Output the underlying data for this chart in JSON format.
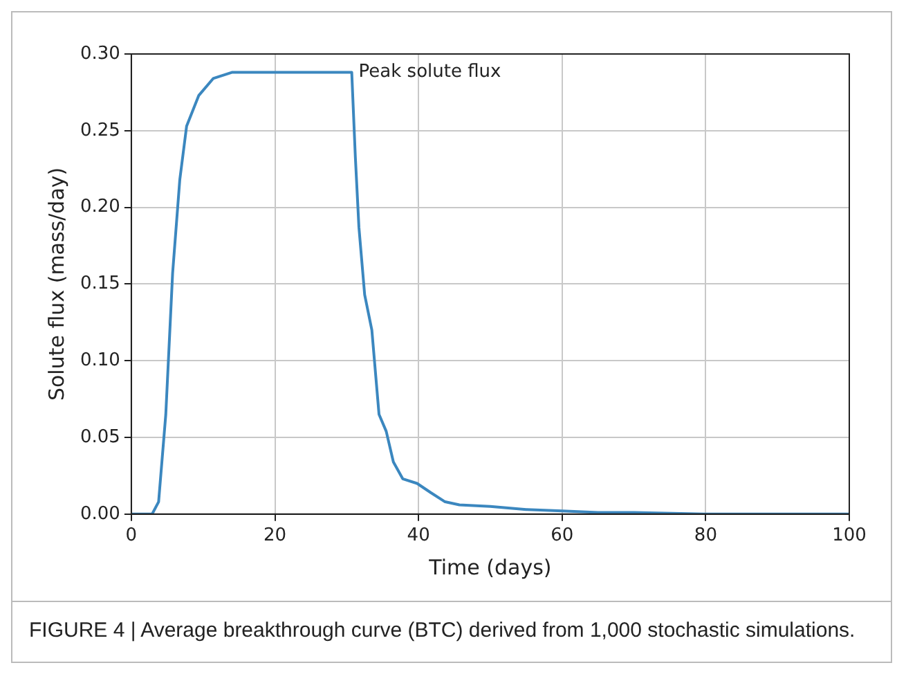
{
  "chart_data": {
    "type": "line",
    "xlabel": "Time (days)",
    "ylabel": "Solute flux (mass/day)",
    "x": [
      0,
      2.9,
      3.8,
      4.8,
      5.75,
      6.75,
      7.7,
      9.4,
      11.4,
      14,
      20,
      30.7,
      31.2,
      31.7,
      32.5,
      33.5,
      34.5,
      35.5,
      36.5,
      37.8,
      39.8,
      41.7,
      43.7,
      45.7,
      50,
      55,
      60,
      65,
      70,
      80,
      100
    ],
    "series": [
      {
        "color": "#3b87bf",
        "values": [
          0,
          0,
          0.008,
          0.065,
          0.157,
          0.218,
          0.253,
          0.273,
          0.284,
          0.288,
          0.288,
          0.288,
          0.233,
          0.187,
          0.143,
          0.12,
          0.065,
          0.054,
          0.034,
          0.023,
          0.02,
          0.014,
          0.008,
          0.006,
          0.005,
          0.003,
          0.002,
          0.001,
          0.001,
          0,
          0
        ]
      }
    ],
    "xlim": [
      0,
      100
    ],
    "xticks": [
      0,
      20,
      40,
      60,
      80,
      100
    ],
    "ylim": [
      0,
      0.3
    ],
    "yticks": [
      {
        "value": 0,
        "label": "0.00"
      },
      {
        "value": 0.05,
        "label": "0.05"
      },
      {
        "value": 0.1,
        "label": "0.10"
      },
      {
        "value": 0.15,
        "label": "0.15"
      },
      {
        "value": 0.2,
        "label": "0.20"
      },
      {
        "value": 0.25,
        "label": "0.25"
      },
      {
        "value": 0.3,
        "label": "0.30"
      }
    ],
    "grid": true,
    "legend": false,
    "marker": "none",
    "line_style": "solid",
    "annotations": [
      {
        "text": "Peak solute flux",
        "x": 30.7,
        "y": 0.288
      },
      "FIGURE 4 | Average breakthrough curve (BTC) derived from 1,000 stochastic simulations."
    ]
  }
}
